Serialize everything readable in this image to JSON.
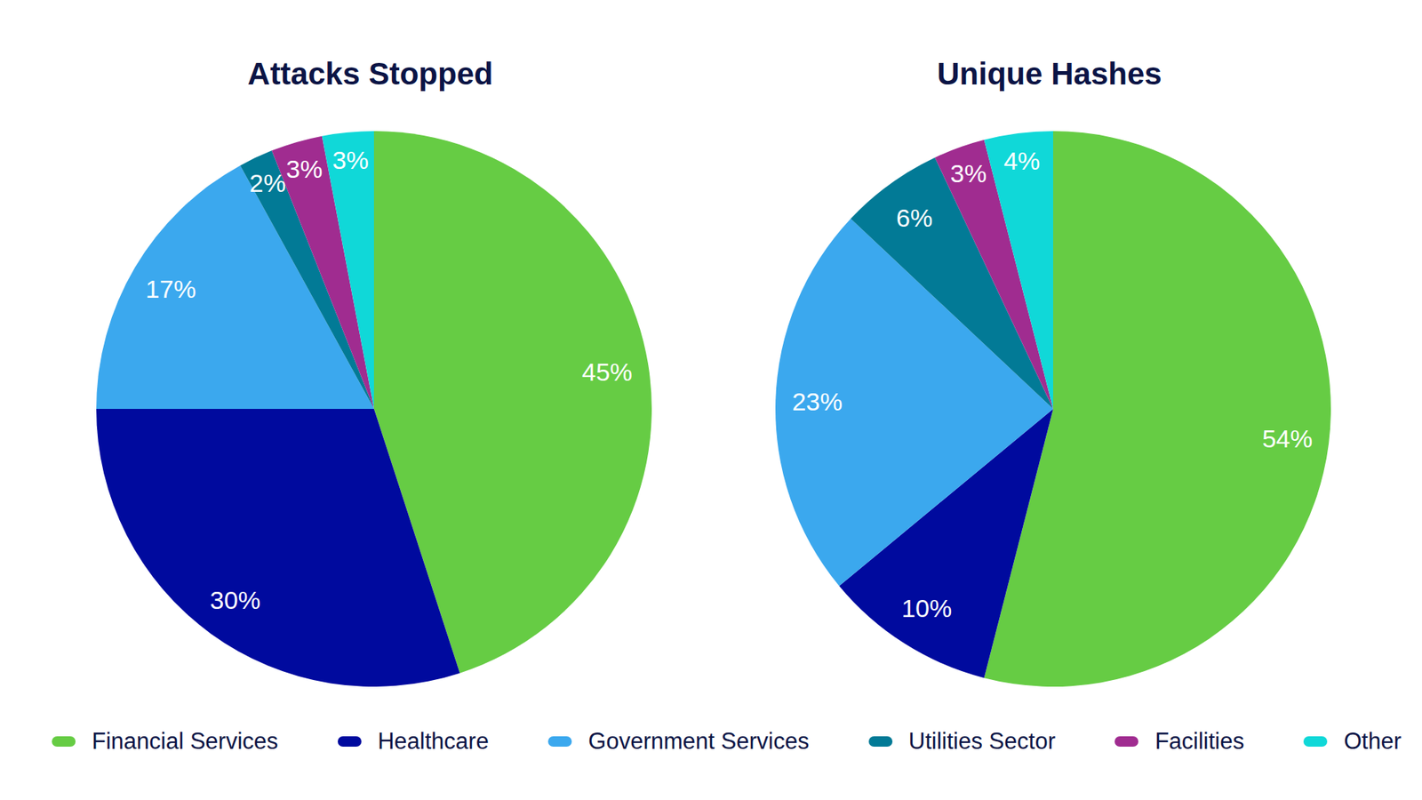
{
  "chart_data": [
    {
      "type": "pie",
      "title": "Attacks Stopped",
      "categories": [
        "Financial Services",
        "Healthcare",
        "Government Services",
        "Utilities Sector",
        "Facilities",
        "Other"
      ],
      "values": [
        45,
        30,
        17,
        2,
        3,
        3
      ],
      "value_labels": [
        "45%",
        "30%",
        "17%",
        "2%",
        "3%",
        "3%"
      ],
      "colors": [
        "#66cc44",
        "#000a9e",
        "#3ba8ee",
        "#027a96",
        "#a02c90",
        "#10d8d8"
      ],
      "data_labels": true,
      "legend": "bottom"
    },
    {
      "type": "pie",
      "title": "Unique Hashes",
      "categories": [
        "Financial Services",
        "Healthcare",
        "Government Services",
        "Utilities Sector",
        "Facilities",
        "Other"
      ],
      "values": [
        54,
        10,
        23,
        6,
        3,
        4
      ],
      "value_labels": [
        "54%",
        "10%",
        "23%",
        "6%",
        "3%",
        "4%"
      ],
      "colors": [
        "#66cc44",
        "#000a9e",
        "#3ba8ee",
        "#027a96",
        "#a02c90",
        "#10d8d8"
      ],
      "data_labels": true,
      "legend": "bottom"
    }
  ]
}
